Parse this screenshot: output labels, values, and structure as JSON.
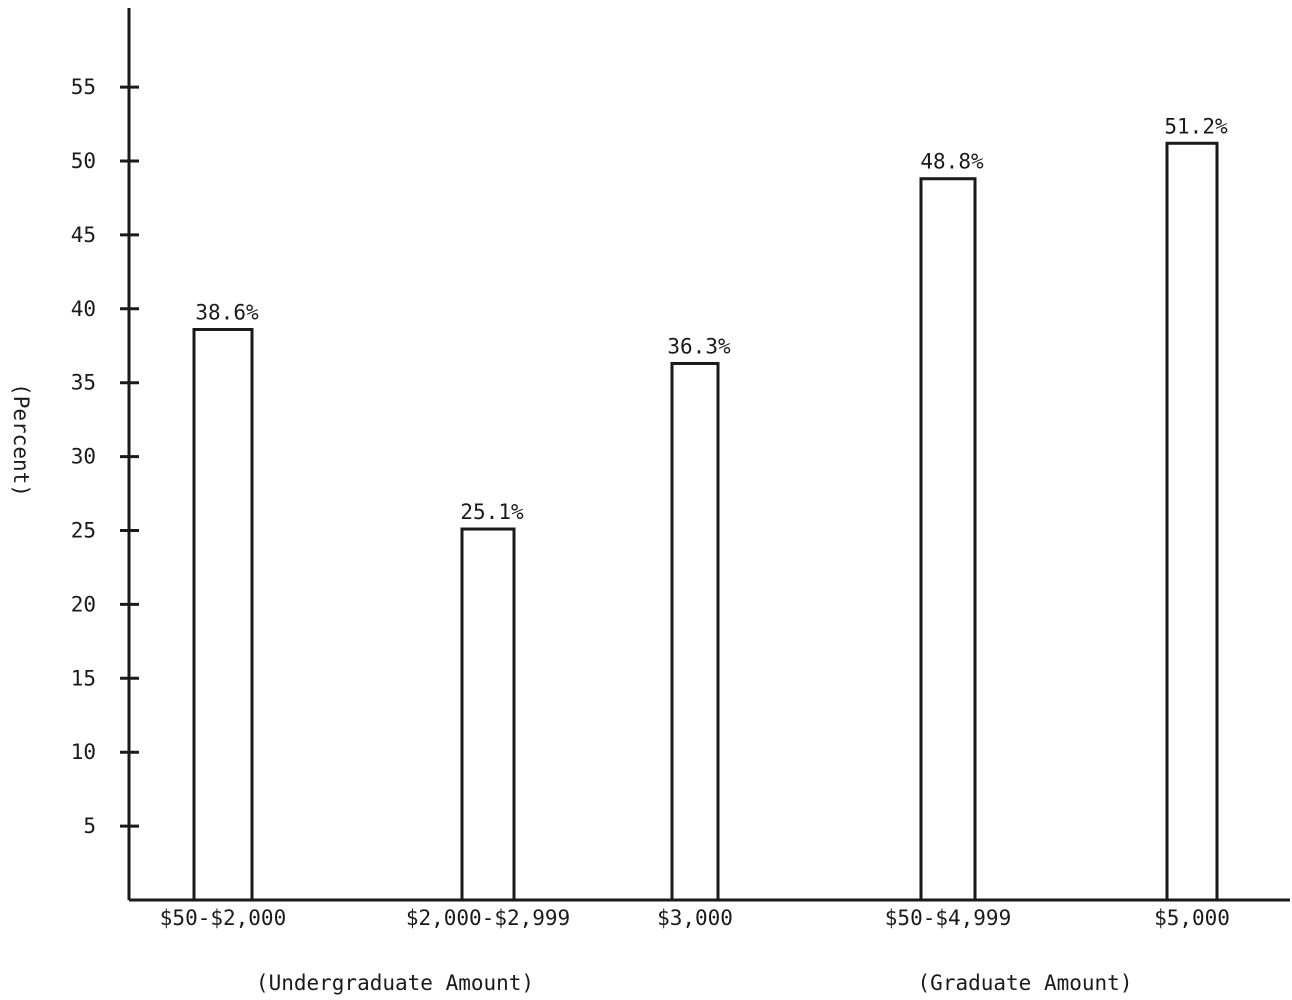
{
  "chart_data": {
    "type": "bar",
    "title": "",
    "xlabel": "",
    "ylabel": "(Percent)",
    "ylim": [
      0,
      60
    ],
    "yticks": [
      5,
      10,
      15,
      20,
      25,
      30,
      35,
      40,
      45,
      50,
      55
    ],
    "categories": [
      "$50-$2,000",
      "$2,000-$2,999",
      "$3,000",
      "$50-$4,999",
      "$5,000"
    ],
    "values": [
      38.6,
      25.1,
      36.3,
      48.8,
      51.2
    ],
    "data_labels": [
      "38.6%",
      "25.1%",
      "36.3%",
      "48.8%",
      "51.2%"
    ],
    "groups": [
      {
        "label": "(Undergraduate Amount)",
        "categories": [
          "$50-$2,000",
          "$2,000-$2,999"
        ]
      },
      {
        "label": "(Graduate Amount)",
        "categories": [
          "$3,000",
          "$50-$4,999",
          "$5,000"
        ]
      }
    ],
    "grid": false,
    "legend": "none",
    "colors": {
      "bar_fill": "#ffffff",
      "stroke": "#1a1a1a"
    }
  }
}
